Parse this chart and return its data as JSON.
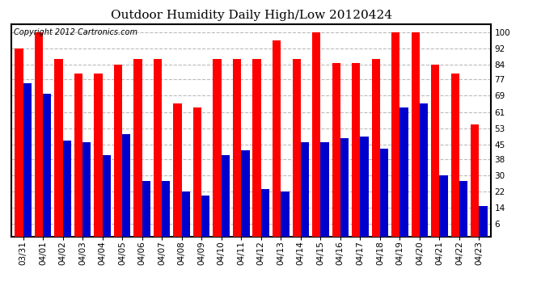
{
  "title": "Outdoor Humidity Daily High/Low 20120424",
  "copyright": "Copyright 2012 Cartronics.com",
  "dates": [
    "03/31",
    "04/01",
    "04/02",
    "04/03",
    "04/04",
    "04/05",
    "04/06",
    "04/07",
    "04/08",
    "04/09",
    "04/10",
    "04/11",
    "04/12",
    "04/13",
    "04/14",
    "04/15",
    "04/16",
    "04/17",
    "04/18",
    "04/19",
    "04/20",
    "04/21",
    "04/22",
    "04/23"
  ],
  "highs": [
    92,
    100,
    87,
    80,
    80,
    84,
    87,
    87,
    65,
    63,
    87,
    87,
    87,
    96,
    87,
    100,
    85,
    85,
    87,
    100,
    100,
    84,
    80,
    55
  ],
  "lows": [
    75,
    70,
    47,
    46,
    40,
    50,
    27,
    27,
    22,
    20,
    40,
    42,
    23,
    22,
    46,
    46,
    48,
    49,
    43,
    63,
    65,
    30,
    27,
    15
  ],
  "high_color": "#ff0000",
  "low_color": "#0000cc",
  "bg_color": "#ffffff",
  "plot_bg_color": "#ffffff",
  "grid_color": "#bbbbbb",
  "yticks": [
    6,
    14,
    22,
    30,
    38,
    45,
    53,
    61,
    69,
    77,
    84,
    92,
    100
  ],
  "ymin": 0,
  "ymax": 104,
  "bar_width": 0.42,
  "title_fontsize": 11,
  "tick_fontsize": 7.5,
  "copyright_fontsize": 7
}
